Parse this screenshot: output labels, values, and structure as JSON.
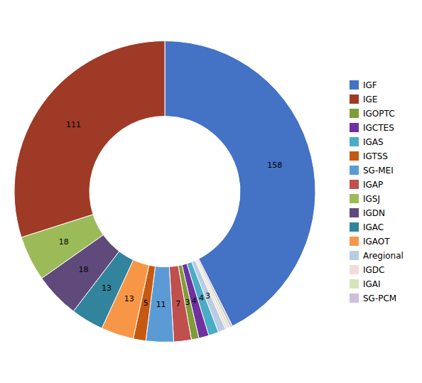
{
  "chart_data": {
    "type": "pie",
    "categories": [
      "IGF",
      "SG-PCM",
      "IGAI",
      "IGDC",
      "Aregional",
      "IGAS",
      "IGCTES",
      "IGOPTC",
      "IGAP",
      "SG-MEI",
      "IGTSS",
      "IGAOT",
      "IGAC",
      "IGDN",
      "IGSJ",
      "IGE"
    ],
    "values": [
      158,
      1,
      1,
      1,
      3,
      4,
      4,
      3,
      7,
      11,
      5,
      13,
      13,
      18,
      18,
      111
    ],
    "colors": [
      "#4472C4",
      "#CCC0DA",
      "#D6E4BC",
      "#F2DCDB",
      "#B8CCE4",
      "#4BACC6",
      "#7030A0",
      "#7F9C3A",
      "#C0504D",
      "#5B9BD5",
      "#C65911",
      "#F79646",
      "#31849B",
      "#604A7B",
      "#9BBB59",
      "#9E3A26"
    ],
    "data_labels": true,
    "value_labels": [
      "158",
      null,
      null,
      null,
      "3",
      "4",
      "4",
      "3",
      "7",
      "11",
      "5",
      "13",
      "13",
      "18",
      "18",
      "111"
    ],
    "legend": "right",
    "legend_labels": [
      "IGF",
      "IGE",
      "IGOPTC",
      "IGCTES",
      "IGAS",
      "IGTSS",
      "SG-MEI",
      "IGAP",
      "IGSJ",
      "IGDN",
      "IGAC",
      "IGAOT",
      "Aregional",
      "IGDC",
      "IGAI",
      "SG-PCM"
    ]
  }
}
